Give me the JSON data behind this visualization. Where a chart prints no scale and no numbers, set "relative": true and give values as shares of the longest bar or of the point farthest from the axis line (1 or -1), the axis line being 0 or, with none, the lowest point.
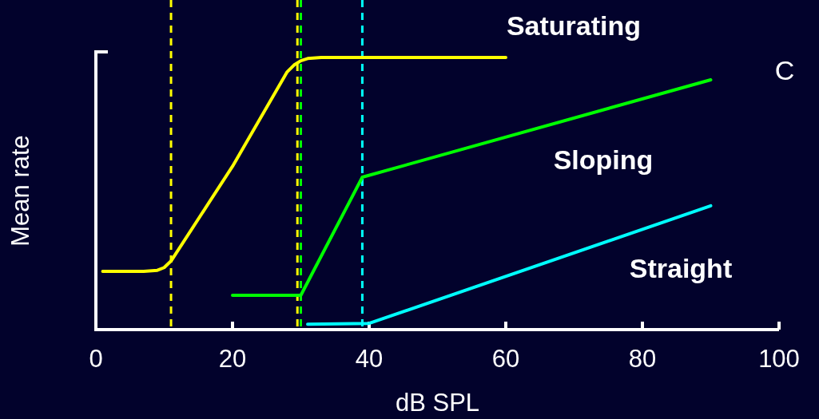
{
  "chart_data": {
    "type": "line",
    "relative": true,
    "xlabel": "dB SPL",
    "ylabel": "Mean rate",
    "xlim": [
      0,
      100
    ],
    "xticks": [
      0,
      20,
      40,
      60,
      80,
      100
    ],
    "line_style": "solid",
    "annotations": [
      "C"
    ],
    "series": [
      {
        "name": "Saturating",
        "color": "#ffff00",
        "x": [
          1,
          7,
          9,
          10,
          11,
          20,
          28,
          29,
          30,
          31,
          33,
          60
        ],
        "values": [
          0.214,
          0.214,
          0.218,
          0.228,
          0.252,
          0.6,
          0.947,
          0.972,
          0.988,
          0.996,
          1,
          1
        ]
      },
      {
        "name": "Sloping",
        "color": "#00ff00",
        "x": [
          20,
          30,
          39,
          90
        ],
        "values": [
          0.126,
          0.126,
          0.56,
          0.918
        ]
      },
      {
        "name": "Straight",
        "color": "#00ffff",
        "x": [
          31,
          40,
          90
        ],
        "values": [
          0.02,
          0.023,
          0.455
        ]
      }
    ],
    "ref_lines": [
      {
        "axis": "x",
        "value": 11,
        "color": "#ffff00",
        "line_style": "dashed"
      },
      {
        "axis": "x",
        "value": 29.5,
        "color": "#ffff00",
        "line_style": "dashed"
      },
      {
        "axis": "x",
        "value": 30,
        "color": "#00ff00",
        "line_style": "dashed"
      },
      {
        "axis": "x",
        "value": 39,
        "color": "#00ff00",
        "line_style": "dashed"
      },
      {
        "axis": "x",
        "value": 39,
        "color": "#00ffff",
        "line_style": "dashed"
      }
    ]
  }
}
